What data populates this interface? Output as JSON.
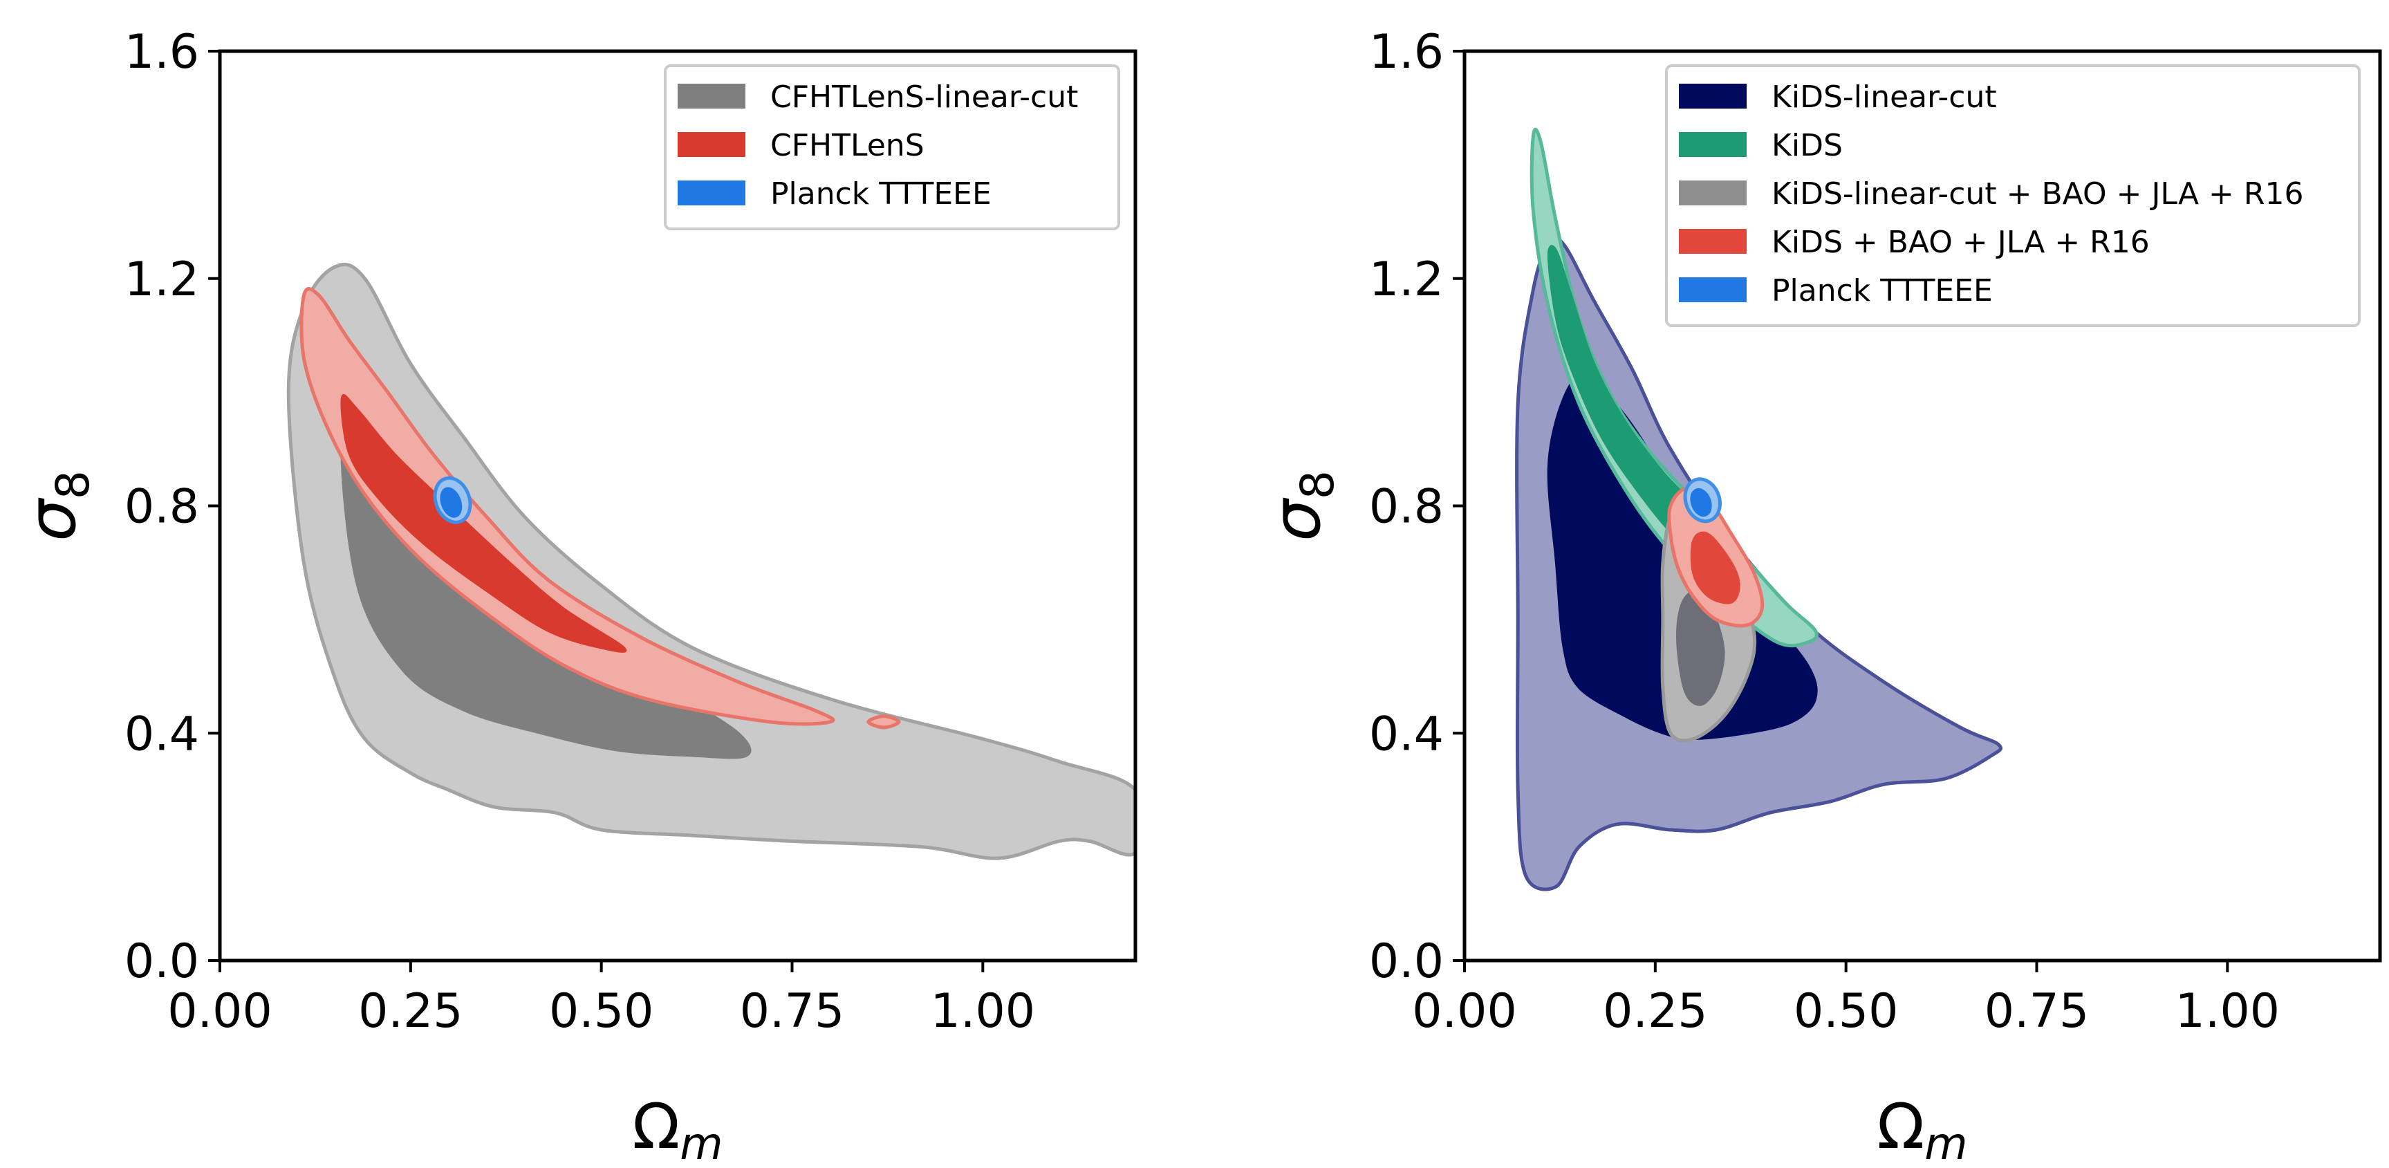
{
  "chart_data": [
    {
      "type": "contour",
      "panel": "left",
      "xlabel": "Ωm",
      "ylabel": "σ8",
      "xlim": [
        0.0,
        1.2
      ],
      "ylim": [
        0.0,
        1.6
      ],
      "xticks": [
        "0.00",
        "0.25",
        "0.50",
        "0.75",
        "1.00"
      ],
      "xtick_values": [
        0.0,
        0.25,
        0.5,
        0.75,
        1.0
      ],
      "yticks": [
        "0.0",
        "0.4",
        "0.8",
        "1.2",
        "1.6"
      ],
      "ytick_values": [
        0.0,
        0.4,
        0.8,
        1.2,
        1.6
      ],
      "legend_position": "top-right",
      "legend": [
        "CFHTLenS-linear-cut",
        "CFHTLenS",
        "Planck TTTEEE"
      ],
      "series": [
        {
          "name": "CFHTLenS-linear-cut",
          "color_outer": "#cacaca",
          "stroke_outer": "#a3a3a3",
          "color_inner": "#7f7f7f",
          "stroke_inner": "#7f7f7f",
          "contour_95": [
            [
              0.11,
              1.15
            ],
            [
              0.15,
              1.22
            ],
            [
              0.19,
              1.2
            ],
            [
              0.25,
              1.05
            ],
            [
              0.32,
              0.92
            ],
            [
              0.4,
              0.78
            ],
            [
              0.5,
              0.66
            ],
            [
              0.62,
              0.55
            ],
            [
              0.8,
              0.46
            ],
            [
              1.0,
              0.39
            ],
            [
              1.1,
              0.35
            ],
            [
              1.2,
              0.3
            ],
            [
              1.2,
              0.19
            ],
            [
              1.14,
              0.21
            ],
            [
              1.1,
              0.21
            ],
            [
              1.02,
              0.18
            ],
            [
              0.92,
              0.2
            ],
            [
              0.75,
              0.21
            ],
            [
              0.62,
              0.22
            ],
            [
              0.5,
              0.23
            ],
            [
              0.44,
              0.26
            ],
            [
              0.36,
              0.27
            ],
            [
              0.3,
              0.3
            ],
            [
              0.25,
              0.33
            ],
            [
              0.19,
              0.39
            ],
            [
              0.15,
              0.5
            ],
            [
              0.11,
              0.7
            ],
            [
              0.09,
              1.0
            ]
          ],
          "contour_68": [
            [
              0.16,
              0.93
            ],
            [
              0.2,
              0.99
            ],
            [
              0.25,
              0.93
            ],
            [
              0.3,
              0.85
            ],
            [
              0.36,
              0.75
            ],
            [
              0.44,
              0.63
            ],
            [
              0.52,
              0.54
            ],
            [
              0.6,
              0.47
            ],
            [
              0.68,
              0.4
            ],
            [
              0.69,
              0.36
            ],
            [
              0.62,
              0.36
            ],
            [
              0.52,
              0.37
            ],
            [
              0.42,
              0.4
            ],
            [
              0.32,
              0.44
            ],
            [
              0.24,
              0.51
            ],
            [
              0.18,
              0.66
            ]
          ]
        },
        {
          "name": "CFHTLenS",
          "color_outer": "#f1aca5",
          "stroke_outer": "#e8756a",
          "color_inner": "#d93a2e",
          "stroke_inner": "#d93a2e",
          "contour_95": [
            [
              0.11,
              1.17
            ],
            [
              0.13,
              1.17
            ],
            [
              0.17,
              1.09
            ],
            [
              0.22,
              1.0
            ],
            [
              0.28,
              0.89
            ],
            [
              0.35,
              0.78
            ],
            [
              0.43,
              0.67
            ],
            [
              0.55,
              0.57
            ],
            [
              0.68,
              0.49
            ],
            [
              0.78,
              0.44
            ],
            [
              0.8,
              0.42
            ],
            [
              0.72,
              0.42
            ],
            [
              0.56,
              0.46
            ],
            [
              0.45,
              0.52
            ],
            [
              0.35,
              0.61
            ],
            [
              0.26,
              0.71
            ],
            [
              0.19,
              0.82
            ],
            [
              0.14,
              0.94
            ],
            [
              0.11,
              1.06
            ]
          ],
          "contour_68": [
            [
              0.16,
              0.99
            ],
            [
              0.18,
              0.97
            ],
            [
              0.23,
              0.89
            ],
            [
              0.3,
              0.8
            ],
            [
              0.38,
              0.7
            ],
            [
              0.45,
              0.62
            ],
            [
              0.53,
              0.55
            ],
            [
              0.5,
              0.55
            ],
            [
              0.43,
              0.58
            ],
            [
              0.35,
              0.65
            ],
            [
              0.27,
              0.73
            ],
            [
              0.21,
              0.81
            ],
            [
              0.17,
              0.89
            ]
          ],
          "island_95": [
            [
              0.85,
              0.42
            ],
            [
              0.87,
              0.43
            ],
            [
              0.89,
              0.42
            ],
            [
              0.87,
              0.41
            ]
          ]
        },
        {
          "name": "Planck TTTEEE",
          "color_outer": "#9bc3f2",
          "stroke_outer": "#3e8fe8",
          "color_inner": "#1f78e3",
          "stroke_inner": "#1f78e3",
          "ellipse_95": {
            "cx": 0.305,
            "cy": 0.81,
            "rx": 0.022,
            "ry": 0.04
          },
          "ellipse_68": {
            "cx": 0.303,
            "cy": 0.806,
            "rx": 0.012,
            "ry": 0.026
          }
        }
      ]
    },
    {
      "type": "contour",
      "panel": "right",
      "xlabel": "Ωm",
      "ylabel": "σ8",
      "xlim": [
        0.0,
        1.2
      ],
      "ylim": [
        0.0,
        1.6
      ],
      "xticks": [
        "0.00",
        "0.25",
        "0.50",
        "0.75",
        "1.00"
      ],
      "xtick_values": [
        0.0,
        0.25,
        0.5,
        0.75,
        1.0
      ],
      "yticks": [
        "0.0",
        "0.4",
        "0.8",
        "1.2",
        "1.6"
      ],
      "ytick_values": [
        0.0,
        0.4,
        0.8,
        1.2,
        1.6
      ],
      "legend_position": "top-right",
      "legend": [
        "KiDS-linear-cut",
        "KiDS",
        "KiDS-linear-cut + BAO + JLA + R16",
        "KiDS + BAO + JLA + R16",
        "Planck TTTEEE"
      ],
      "series": [
        {
          "name": "KiDS-linear-cut",
          "color_outer": "#999cc5",
          "stroke_outer": "#4a5199",
          "color_inner": "#000a5c",
          "stroke_inner": "#000a5c",
          "contour_95": [
            [
              0.07,
              0.6
            ],
            [
              0.07,
              0.98
            ],
            [
              0.09,
              1.18
            ],
            [
              0.11,
              1.26
            ],
            [
              0.13,
              1.26
            ],
            [
              0.17,
              1.16
            ],
            [
              0.22,
              1.04
            ],
            [
              0.27,
              0.9
            ],
            [
              0.35,
              0.74
            ],
            [
              0.45,
              0.59
            ],
            [
              0.55,
              0.49
            ],
            [
              0.65,
              0.41
            ],
            [
              0.7,
              0.38
            ],
            [
              0.69,
              0.36
            ],
            [
              0.63,
              0.32
            ],
            [
              0.55,
              0.31
            ],
            [
              0.48,
              0.28
            ],
            [
              0.4,
              0.26
            ],
            [
              0.33,
              0.23
            ],
            [
              0.27,
              0.23
            ],
            [
              0.2,
              0.24
            ],
            [
              0.15,
              0.2
            ],
            [
              0.12,
              0.13
            ],
            [
              0.08,
              0.15
            ],
            [
              0.07,
              0.3
            ]
          ],
          "contour_68": [
            [
              0.12,
              0.7
            ],
            [
              0.11,
              0.87
            ],
            [
              0.13,
              0.99
            ],
            [
              0.16,
              1.03
            ],
            [
              0.21,
              0.96
            ],
            [
              0.26,
              0.86
            ],
            [
              0.32,
              0.74
            ],
            [
              0.39,
              0.62
            ],
            [
              0.45,
              0.52
            ],
            [
              0.46,
              0.46
            ],
            [
              0.43,
              0.42
            ],
            [
              0.37,
              0.4
            ],
            [
              0.3,
              0.39
            ],
            [
              0.26,
              0.4
            ],
            [
              0.21,
              0.43
            ],
            [
              0.15,
              0.48
            ],
            [
              0.13,
              0.55
            ]
          ]
        },
        {
          "name": "KiDS",
          "color_outer": "#97d6c1",
          "stroke_outer": "#56b99a",
          "color_inner": "#1d9c73",
          "stroke_inner": "#1d9c73",
          "contour_95": [
            [
              0.09,
              1.45
            ],
            [
              0.1,
              1.44
            ],
            [
              0.12,
              1.3
            ],
            [
              0.15,
              1.13
            ],
            [
              0.19,
              1.0
            ],
            [
              0.24,
              0.9
            ],
            [
              0.3,
              0.81
            ],
            [
              0.36,
              0.72
            ],
            [
              0.42,
              0.63
            ],
            [
              0.46,
              0.58
            ],
            [
              0.45,
              0.56
            ],
            [
              0.41,
              0.56
            ],
            [
              0.34,
              0.63
            ],
            [
              0.27,
              0.72
            ],
            [
              0.21,
              0.83
            ],
            [
              0.15,
              0.98
            ],
            [
              0.11,
              1.15
            ],
            [
              0.09,
              1.32
            ]
          ],
          "contour_68": [
            [
              0.11,
              1.24
            ],
            [
              0.12,
              1.25
            ],
            [
              0.14,
              1.17
            ],
            [
              0.17,
              1.05
            ],
            [
              0.21,
              0.95
            ],
            [
              0.26,
              0.86
            ],
            [
              0.31,
              0.79
            ],
            [
              0.34,
              0.73
            ],
            [
              0.32,
              0.71
            ],
            [
              0.28,
              0.74
            ],
            [
              0.23,
              0.82
            ],
            [
              0.18,
              0.92
            ],
            [
              0.14,
              1.04
            ],
            [
              0.12,
              1.13
            ]
          ]
        },
        {
          "name": "KiDS-linear-cut + BAO + JLA + R16",
          "color_outer": "#b6b6b6",
          "stroke_outer": "#9a9a9a",
          "color_inner": "#6e6e78",
          "stroke_inner": "#6e6e78",
          "contour_95": [
            [
              0.27,
              0.78
            ],
            [
              0.29,
              0.8
            ],
            [
              0.32,
              0.76
            ],
            [
              0.36,
              0.66
            ],
            [
              0.38,
              0.57
            ],
            [
              0.37,
              0.5
            ],
            [
              0.34,
              0.43
            ],
            [
              0.3,
              0.39
            ],
            [
              0.27,
              0.4
            ],
            [
              0.26,
              0.48
            ],
            [
              0.26,
              0.6
            ],
            [
              0.26,
              0.7
            ]
          ],
          "contour_68": [
            [
              0.29,
              0.64
            ],
            [
              0.31,
              0.65
            ],
            [
              0.33,
              0.6
            ],
            [
              0.34,
              0.54
            ],
            [
              0.33,
              0.48
            ],
            [
              0.31,
              0.45
            ],
            [
              0.29,
              0.47
            ],
            [
              0.28,
              0.54
            ],
            [
              0.28,
              0.6
            ]
          ]
        },
        {
          "name": "KiDS + BAO + JLA + R16",
          "color_outer": "#f2aaa2",
          "stroke_outer": "#e8756a",
          "color_inner": "#e2473b",
          "stroke_inner": "#e2473b",
          "contour_95": [
            [
              0.27,
              0.8
            ],
            [
              0.29,
              0.83
            ],
            [
              0.32,
              0.81
            ],
            [
              0.35,
              0.75
            ],
            [
              0.38,
              0.68
            ],
            [
              0.39,
              0.62
            ],
            [
              0.37,
              0.59
            ],
            [
              0.33,
              0.6
            ],
            [
              0.3,
              0.64
            ],
            [
              0.28,
              0.69
            ],
            [
              0.27,
              0.75
            ]
          ],
          "contour_68": [
            [
              0.3,
              0.74
            ],
            [
              0.32,
              0.75
            ],
            [
              0.35,
              0.7
            ],
            [
              0.36,
              0.66
            ],
            [
              0.35,
              0.63
            ],
            [
              0.32,
              0.64
            ],
            [
              0.3,
              0.68
            ]
          ]
        },
        {
          "name": "Planck TTTEEE",
          "color_outer": "#9bc3f2",
          "stroke_outer": "#3e8fe8",
          "color_inner": "#1f78e3",
          "stroke_inner": "#1f78e3",
          "ellipse_95": {
            "cx": 0.312,
            "cy": 0.81,
            "rx": 0.022,
            "ry": 0.038
          },
          "ellipse_68": {
            "cx": 0.31,
            "cy": 0.806,
            "rx": 0.012,
            "ry": 0.024
          }
        }
      ]
    }
  ]
}
